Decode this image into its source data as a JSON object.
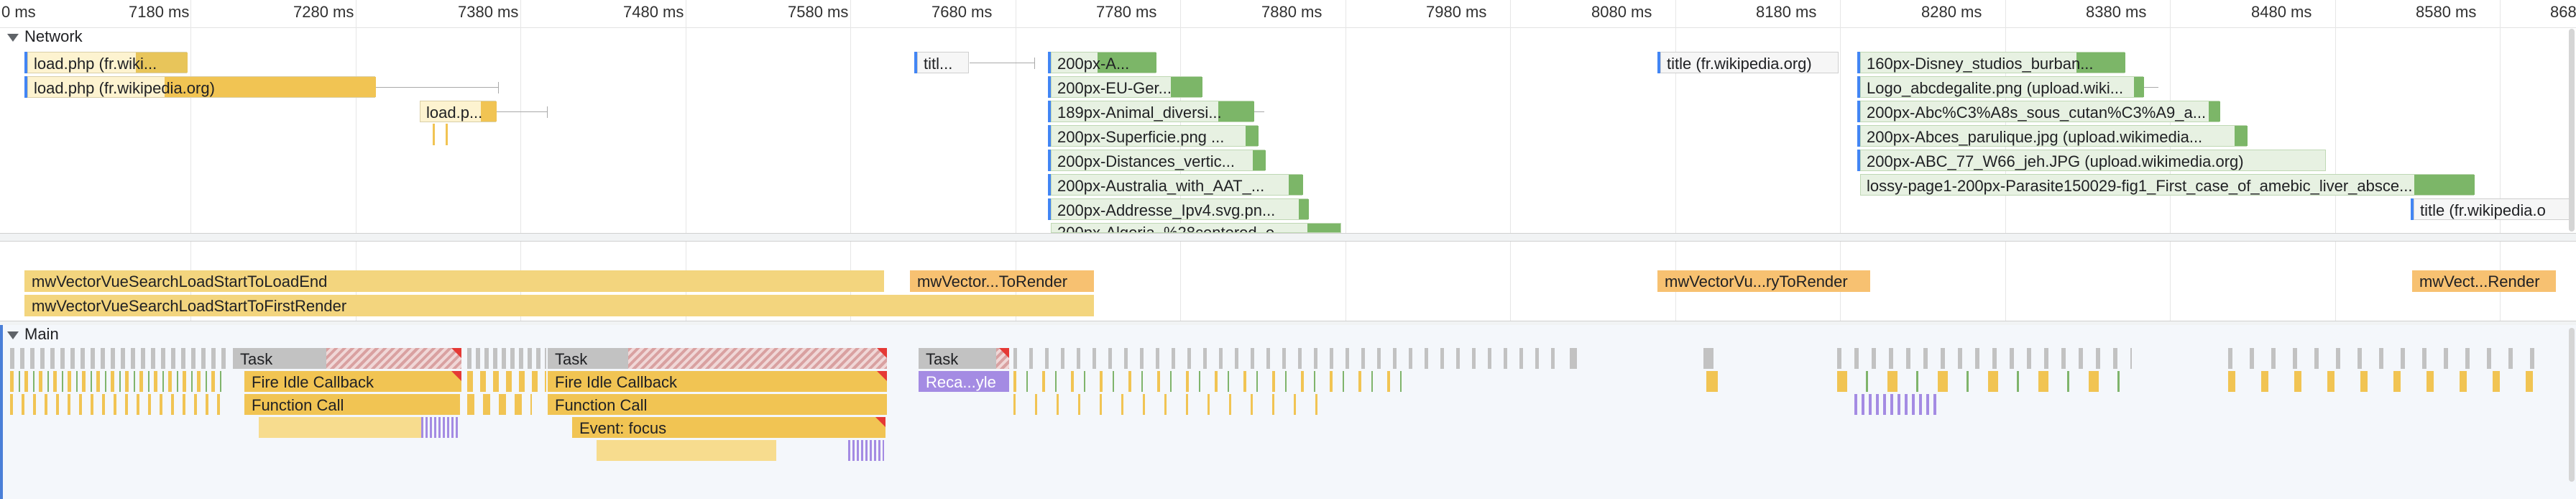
{
  "ruler": {
    "ticks": [
      "0 ms",
      "7180 ms",
      "7280 ms",
      "7380 ms",
      "7480 ms",
      "7580 ms",
      "7680 ms",
      "7780 ms",
      "7880 ms",
      "7980 ms",
      "8080 ms",
      "8180 ms",
      "8280 ms",
      "8380 ms",
      "8480 ms",
      "8580 ms",
      "868"
    ]
  },
  "network": {
    "header": "Network",
    "requests": [
      {
        "label": "load.php (fr.wiki..."
      },
      {
        "label": "load.php (fr.wikipedia.org)"
      },
      {
        "label": "load.p..."
      },
      {
        "label": "titl..."
      },
      {
        "label": "200px-A..."
      },
      {
        "label": "200px-EU-Ger..."
      },
      {
        "label": "189px-Animal_diversi..."
      },
      {
        "label": "200px-Superficie.png ..."
      },
      {
        "label": "200px-Distances_vertic..."
      },
      {
        "label": "200px-Australia_with_AAT_..."
      },
      {
        "label": "200px-Addresse_Ipv4.svg.pn..."
      },
      {
        "label": "200px-Algeria_%28centered_o..."
      },
      {
        "label": "title (fr.wikipedia.org)"
      },
      {
        "label": "160px-Disney_studios_burban..."
      },
      {
        "label": "Logo_abcdegalite.png (upload.wiki..."
      },
      {
        "label": "200px-Abc%C3%A8s_sous_cutan%C3%A9_a..."
      },
      {
        "label": "200px-Abces_parulique.jpg (upload.wikimedia..."
      },
      {
        "label": "200px-ABC_77_W66_jeh.JPG (upload.wikimedia.org)"
      },
      {
        "label": "lossy-page1-200px-Parasite150029-fig1_First_case_of_amebic_liver_absce..."
      },
      {
        "label": "title (fr.wikipedia.o"
      }
    ]
  },
  "timings": [
    {
      "label": "mwVectorVueSearchLoadStartToLoadEnd"
    },
    {
      "label": "mwVectorVueSearchLoadStartToFirstRender"
    },
    {
      "label": "mwVector...ToRender"
    },
    {
      "label": "mwVectorVu...ryToRender"
    },
    {
      "label": "mwVect...Render"
    }
  ],
  "main": {
    "header": "Main",
    "tasks": [
      "Task",
      "Task",
      "Task"
    ],
    "events": {
      "fire_idle_1": "Fire Idle Callback",
      "fire_idle_2": "Fire Idle Callback",
      "recalc": "Reca...yle",
      "function_call_1": "Function Call",
      "function_call_2": "Function Call",
      "event_focus": "Event: focus"
    }
  },
  "colors": {
    "script": "#f1c453",
    "task": "#c2c2c2",
    "rendering": "#a48be3",
    "image_download": "#7cb668",
    "long_task_marker": "#e53935"
  }
}
